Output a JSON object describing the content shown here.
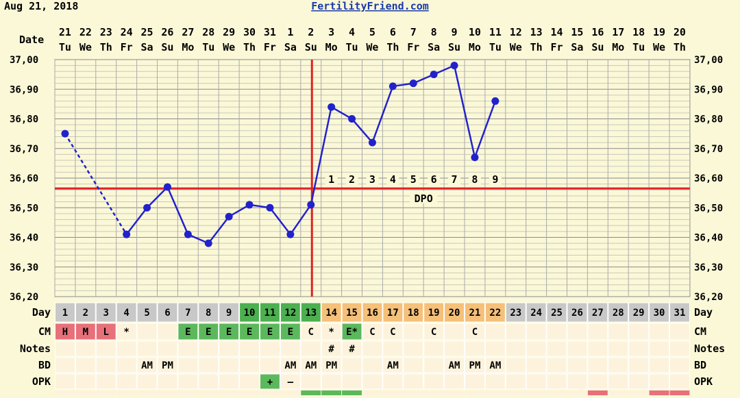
{
  "header": {
    "date": "Aug 21, 2018",
    "site": "FertilityFriend.com"
  },
  "labels": {
    "date": "Date",
    "day": "Day",
    "cm": "CM",
    "notes": "Notes",
    "bd": "BD",
    "opk": "OPK",
    "dpo": "DPO"
  },
  "calendar": {
    "dates": [
      "21",
      "22",
      "23",
      "24",
      "25",
      "26",
      "27",
      "28",
      "29",
      "30",
      "31",
      "1",
      "2",
      "3",
      "4",
      "5",
      "6",
      "7",
      "8",
      "9",
      "10",
      "11",
      "12",
      "13",
      "14",
      "15",
      "16",
      "17",
      "18",
      "19",
      "20"
    ],
    "weekdays": [
      "Tu",
      "We",
      "Th",
      "Fr",
      "Sa",
      "Su",
      "Mo",
      "Tu",
      "We",
      "Th",
      "Fr",
      "Sa",
      "Su",
      "Mo",
      "Tu",
      "We",
      "Th",
      "Fr",
      "Sa",
      "Su",
      "Mo",
      "Tu",
      "We",
      "Th",
      "Fr",
      "Sa",
      "Su",
      "Mo",
      "Tu",
      "We",
      "Th"
    ],
    "cycle_days": [
      "1",
      "2",
      "3",
      "4",
      "5",
      "6",
      "7",
      "8",
      "9",
      "10",
      "11",
      "12",
      "13",
      "14",
      "15",
      "16",
      "17",
      "18",
      "19",
      "20",
      "21",
      "22",
      "23",
      "24",
      "25",
      "26",
      "27",
      "28",
      "29",
      "30",
      "31"
    ]
  },
  "colors": {
    "background": "#fbf8d8",
    "grid": "#a9a9a9",
    "line": "#2222cc",
    "coverline": "#dd2222",
    "day_green": "#4caf50",
    "day_orange": "#f5c07a",
    "day_gray": "#c8c8c8",
    "cm_pink": "#e8707a",
    "cm_green": "#5cb85c",
    "row_bg": "#fdf3dc"
  },
  "chart_data": {
    "type": "line",
    "title": "",
    "xlabel": "Day",
    "ylabel": "",
    "ylim": [
      36.2,
      37.0
    ],
    "yticks": [
      "37,00",
      "36,90",
      "36,80",
      "36,70",
      "36,60",
      "36,50",
      "36,40",
      "36,30",
      "36,20"
    ],
    "x": [
      1,
      2,
      3,
      4,
      5,
      6,
      7,
      8,
      9,
      10,
      11,
      12,
      13,
      14,
      15,
      16,
      17,
      18,
      19,
      20,
      21,
      22
    ],
    "temperatures": [
      36.75,
      null,
      null,
      36.41,
      36.5,
      36.57,
      36.41,
      36.38,
      36.47,
      36.51,
      36.5,
      36.41,
      36.51,
      36.84,
      36.8,
      36.72,
      36.91,
      36.92,
      36.95,
      36.98,
      36.67,
      36.86
    ],
    "coverline": 36.565,
    "ovulation_day": 13,
    "dpo_labels": [
      "1",
      "2",
      "3",
      "4",
      "5",
      "6",
      "7",
      "8",
      "9"
    ],
    "dpo_start_day": 14
  },
  "rows": {
    "day_colors": [
      "gray",
      "gray",
      "gray",
      "gray",
      "gray",
      "gray",
      "gray",
      "gray",
      "gray",
      "green",
      "green",
      "green",
      "green",
      "orange",
      "orange",
      "orange",
      "orange",
      "orange",
      "orange",
      "orange",
      "orange",
      "orange",
      "gray",
      "gray",
      "gray",
      "gray",
      "gray",
      "gray",
      "gray",
      "gray",
      "gray"
    ],
    "cm": [
      "H",
      "M",
      "L",
      "*",
      "",
      "",
      "E",
      "E",
      "E",
      "E",
      "E",
      "E",
      "C",
      "*",
      "E*",
      "C",
      "C",
      "",
      "C",
      "",
      "C",
      "",
      "",
      "",
      "",
      "",
      "",
      "",
      "",
      "",
      ""
    ],
    "cm_colors": [
      "pink",
      "pink",
      "pink",
      "",
      "",
      "",
      "green",
      "green",
      "green",
      "green",
      "green",
      "green",
      "",
      "",
      "green",
      "",
      "",
      "",
      "",
      "",
      "",
      "",
      "",
      "",
      "",
      "",
      "",
      "",
      "",
      "",
      ""
    ],
    "notes": [
      "",
      "",
      "",
      "",
      "",
      "",
      "",
      "",
      "",
      "",
      "",
      "",
      "",
      "#",
      "#",
      "",
      "",
      "",
      "",
      "",
      "",
      "",
      "",
      "",
      "",
      "",
      "",
      "",
      "",
      "",
      ""
    ],
    "bd": [
      "",
      "",
      "",
      "",
      "AM",
      "PM",
      "",
      "",
      "",
      "",
      "",
      "AM",
      "AM",
      "PM",
      "",
      "",
      "AM",
      "",
      "",
      "AM",
      "PM",
      "AM",
      "",
      "",
      "",
      "",
      "",
      "",
      "",
      "",
      ""
    ],
    "opk": [
      "",
      "",
      "",
      "",
      "",
      "",
      "",
      "",
      "",
      "",
      "+",
      "–",
      "",
      "",
      "",
      "",
      "",
      "",
      "",
      "",
      "",
      "",
      "",
      "",
      "",
      "",
      "",
      "",
      "",
      "",
      ""
    ],
    "opk_colors": [
      "",
      "",
      "",
      "",
      "",
      "",
      "",
      "",
      "",
      "",
      "green",
      "",
      "",
      "",
      "",
      "",
      "",
      "",
      "",
      "",
      "",
      "",
      "",
      "",
      "",
      "",
      "",
      "",
      "",
      "",
      ""
    ],
    "bottom_strip": [
      "",
      "",
      "",
      "",
      "",
      "",
      "",
      "",
      "",
      "",
      "",
      "",
      "green",
      "green",
      "green",
      "",
      "",
      "",
      "",
      "",
      "",
      "",
      "",
      "",
      "",
      "",
      "pink",
      "",
      "",
      "pink",
      "pink"
    ]
  }
}
